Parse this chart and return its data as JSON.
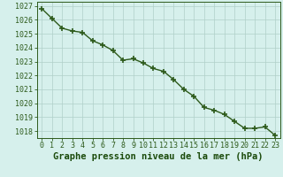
{
  "x": [
    0,
    1,
    2,
    3,
    4,
    5,
    6,
    7,
    8,
    9,
    10,
    11,
    12,
    13,
    14,
    15,
    16,
    17,
    18,
    19,
    20,
    21,
    22,
    23
  ],
  "y": [
    1026.8,
    1026.1,
    1025.4,
    1025.2,
    1025.1,
    1024.5,
    1024.2,
    1023.8,
    1023.1,
    1023.2,
    1022.9,
    1022.5,
    1022.3,
    1021.7,
    1021.0,
    1020.5,
    1019.7,
    1019.5,
    1019.2,
    1018.7,
    1018.2,
    1018.2,
    1018.3,
    1017.7
  ],
  "xlim": [
    -0.5,
    23.5
  ],
  "ylim": [
    1017.5,
    1027.3
  ],
  "yticks": [
    1018,
    1019,
    1020,
    1021,
    1022,
    1023,
    1024,
    1025,
    1026,
    1027
  ],
  "xticks": [
    0,
    1,
    2,
    3,
    4,
    5,
    6,
    7,
    8,
    9,
    10,
    11,
    12,
    13,
    14,
    15,
    16,
    17,
    18,
    19,
    20,
    21,
    22,
    23
  ],
  "xlabel": "Graphe pression niveau de la mer (hPa)",
  "line_color": "#2d5a1b",
  "marker": "+",
  "marker_size": 4.0,
  "bg_color": "#d6f0ec",
  "grid_color": "#b0cfc9",
  "xlabel_color": "#1a4a0a",
  "tick_color": "#2d5a1b",
  "xlabel_fontsize": 7.5,
  "tick_fontsize": 6.0,
  "linewidth": 1.0
}
